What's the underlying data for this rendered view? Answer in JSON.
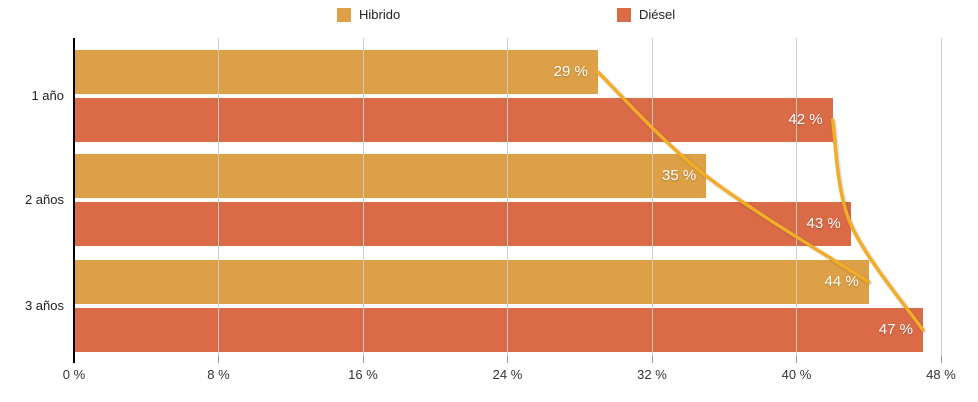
{
  "chart_data": {
    "type": "bar",
    "orientation": "horizontal",
    "title": "",
    "xlabel": "",
    "ylabel": "",
    "categories": [
      "1 año",
      "2 años",
      "3 años"
    ],
    "series": [
      {
        "name": "Hibrido",
        "color": "#DDA046",
        "values": [
          29,
          35,
          44
        ]
      },
      {
        "name": "Diésel",
        "color": "#DB6B47",
        "values": [
          42,
          43,
          47
        ]
      }
    ],
    "data_label_suffix": " %",
    "trend_lines": [
      {
        "series": "Hibrido",
        "color": "#F2AC28",
        "values": [
          29,
          35,
          44
        ]
      },
      {
        "series": "Diésel",
        "color": "#F2AC28",
        "values": [
          42,
          43,
          47
        ]
      }
    ],
    "xlim": [
      0,
      48
    ],
    "x_ticks": [
      0,
      8,
      16,
      24,
      32,
      40,
      48
    ],
    "x_tick_labels": [
      "0 %",
      "8 %",
      "16 %",
      "24 %",
      "32 %",
      "40 %",
      "48 %"
    ],
    "grid": true,
    "legend_position": "top"
  },
  "legend": {
    "items": [
      {
        "label": "Hibrido",
        "color": "#DDA046"
      },
      {
        "label": "Diésel",
        "color": "#DB6B47"
      }
    ]
  },
  "colors": {
    "bar_hibrido": "#DDA046",
    "bar_diesel": "#DB6B47",
    "trend_line": "#F2AC28",
    "grid_line": "#CCCCCC",
    "axis_line": "#000000",
    "tick_label": "#333333",
    "bar_label": "#FFFFFF"
  }
}
